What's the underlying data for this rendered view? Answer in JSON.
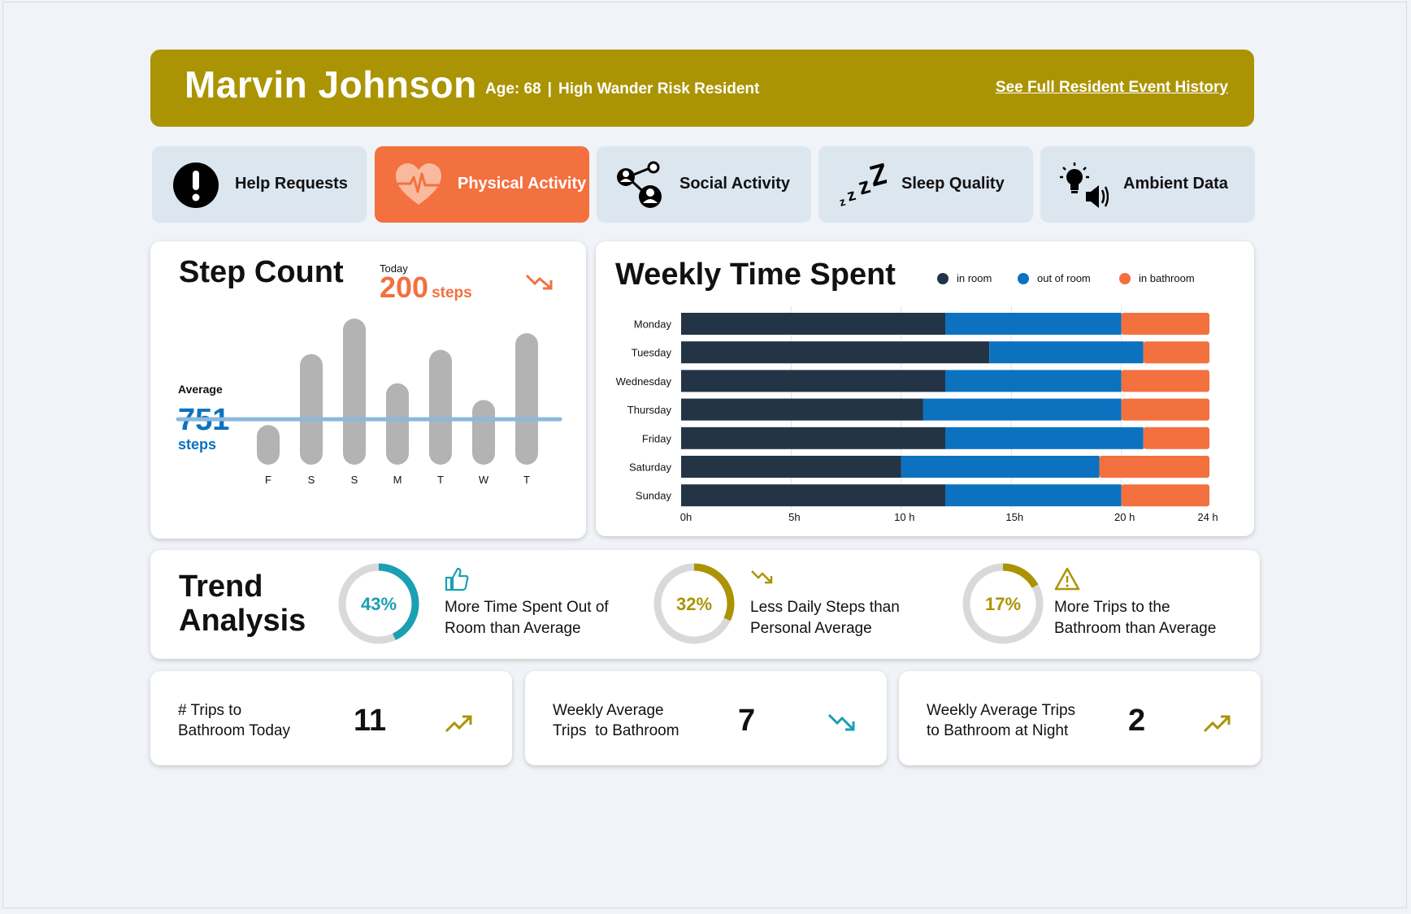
{
  "header": {
    "name": "Marvin Johnson",
    "age": "Age: 68",
    "separator": "|",
    "risk": "High Wander Risk Resident",
    "history_link": "See Full Resident Event History"
  },
  "tabs": [
    {
      "label": "Help Requests",
      "icon": "exclamation-icon",
      "active": false
    },
    {
      "label": "Physical Activity",
      "icon": "heart-pulse-icon",
      "active": true
    },
    {
      "label": "Social Activity",
      "icon": "social-network-icon",
      "active": false
    },
    {
      "label": "Sleep Quality",
      "icon": "zzz-icon",
      "active": false
    },
    {
      "label": "Ambient Data",
      "icon": "lightbulb-speaker-icon",
      "active": false
    }
  ],
  "step_count": {
    "title": "Step Count",
    "today_label": "Today",
    "today_value": "200",
    "today_unit": "steps",
    "average_label": "Average",
    "average_value": "751",
    "average_unit": "steps"
  },
  "weekly_time": {
    "title": "Weekly Time Spent"
  },
  "trend": {
    "title_line1": "Trend",
    "title_line2": "Analysis",
    "items": [
      {
        "percent": "43%",
        "value": 43,
        "color": "#1a9fb3",
        "icon": "thumbs-up-icon",
        "line1": "More Time Spent Out of",
        "line2": "Room than Average"
      },
      {
        "percent": "32%",
        "value": 32,
        "color": "#ab9404",
        "icon": "trend-down-icon",
        "line1": "Less Daily Steps than",
        "line2": "Personal Average"
      },
      {
        "percent": "17%",
        "value": 17,
        "color": "#ab9404",
        "icon": "warning-icon",
        "line1": "More Trips to the",
        "line2": "Bathroom than Average"
      }
    ]
  },
  "stats": [
    {
      "line1": "# Trips to",
      "line2": "Bathroom Today",
      "value": "11",
      "trend": "up",
      "color": "#ab9404"
    },
    {
      "line1": "Weekly Average",
      "line2": "Trips  to Bathroom",
      "value": "7",
      "trend": "down",
      "color": "#1a9fb3"
    },
    {
      "line1": "Weekly Average Trips",
      "line2": "to Bathroom at Night",
      "value": "2",
      "trend": "up",
      "color": "#ab9404"
    }
  ],
  "colors": {
    "header": "#ab9404",
    "accent_orange": "#f3703f",
    "in_room": "#243447",
    "out_of_room": "#0c72c0",
    "in_bathroom": "#f3703f",
    "bar_gray": "#b3b3b3",
    "average_line": "#8ab9dc"
  },
  "chart_data": [
    {
      "type": "bar",
      "title": "Step Count",
      "categories": [
        "F",
        "S",
        "S",
        "M",
        "T",
        "W",
        "T"
      ],
      "values": [
        190,
        530,
        700,
        390,
        550,
        310,
        630
      ],
      "average": 751,
      "ylim": [
        0,
        720
      ]
    },
    {
      "type": "bar",
      "orientation": "horizontal",
      "stacked": true,
      "title": "Weekly Time Spent",
      "categories": [
        "Monday",
        "Tuesday",
        "Wednesday",
        "Thursday",
        "Friday",
        "Saturday",
        "Sunday"
      ],
      "x_ticks": [
        "0h",
        "5h",
        "10 h",
        "15h",
        "20 h",
        "24 h"
      ],
      "xlim": [
        0,
        24
      ],
      "legend_position": "top-right",
      "series": [
        {
          "name": "in room",
          "values": [
            12,
            14,
            12,
            11,
            12,
            10,
            12
          ]
        },
        {
          "name": "out of room",
          "values": [
            8,
            7,
            8,
            9,
            9,
            9,
            8
          ]
        },
        {
          "name": "in bathroom",
          "values": [
            4,
            3,
            4,
            4,
            3,
            5,
            4
          ]
        }
      ]
    }
  ]
}
